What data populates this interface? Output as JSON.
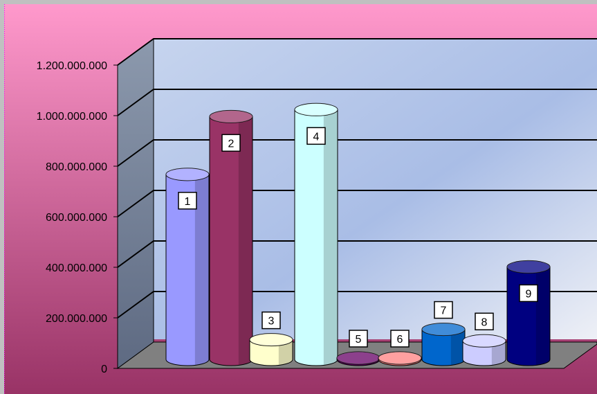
{
  "chart_data": {
    "type": "bar",
    "style": "3d-cylinder",
    "title": "",
    "xlabel": "",
    "ylabel": "",
    "ylim": [
      0,
      1200000000
    ],
    "grid": true,
    "legend": "none",
    "y_ticks": [
      "0",
      "200.000.000",
      "400.000.000",
      "600.000.000",
      "800.000.000",
      "1.000.000.000",
      "1.200.000.000"
    ],
    "categories": [
      "1",
      "2",
      "3",
      "4",
      "5",
      "6",
      "7",
      "8",
      "9"
    ],
    "values": [
      800000000,
      1050000000,
      85000000,
      1080000000,
      5000000,
      3000000,
      130000000,
      80000000,
      400000000
    ],
    "colors": [
      "#9999ff",
      "#993366",
      "#ffffcc",
      "#ccffff",
      "#660066",
      "#ff8080",
      "#0066cc",
      "#ccccff",
      "#000080"
    ],
    "background": {
      "outer_top": "#ff99cc",
      "outer_bottom": "#993366",
      "plot": "#c6d4ee",
      "floor": "#808080",
      "wall": "#8c99ad"
    }
  }
}
